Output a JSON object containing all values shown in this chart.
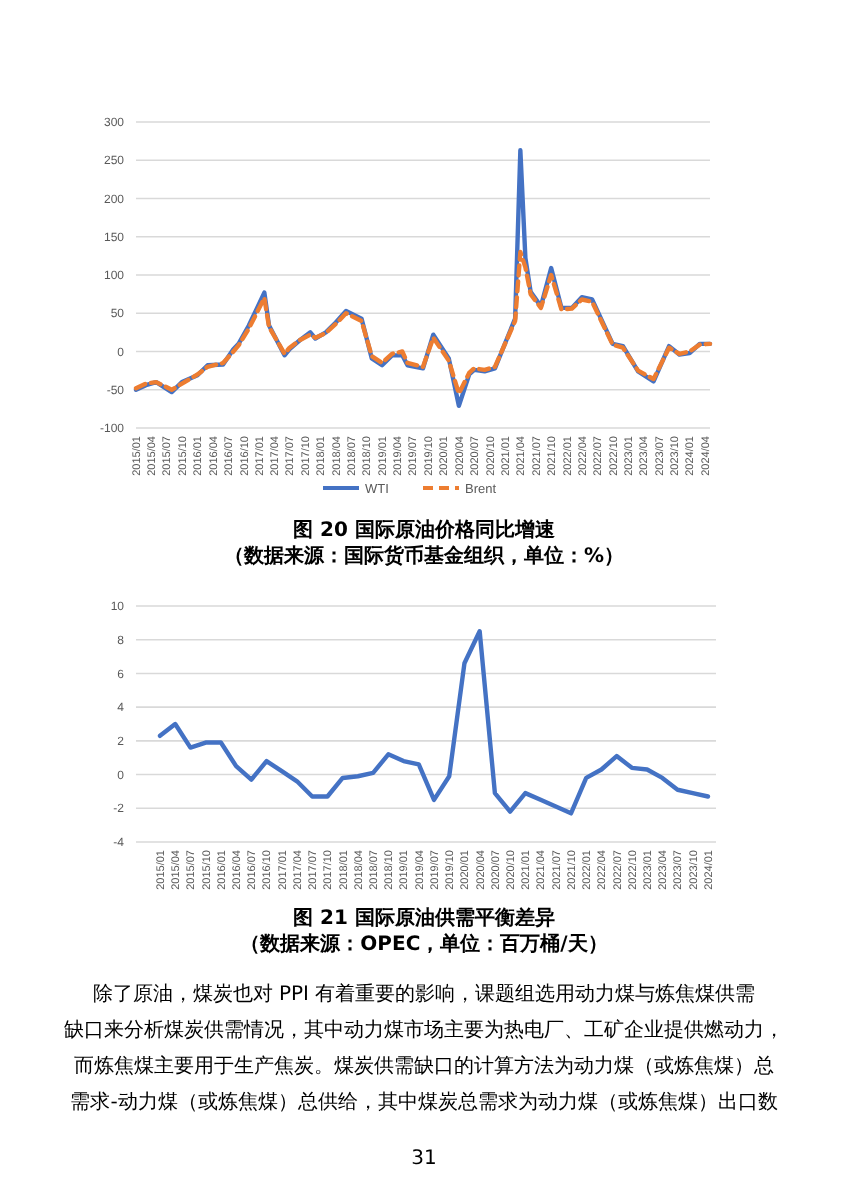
{
  "chart_data": [
    {
      "type": "line",
      "title": "图 20 国际原油价格同比增速",
      "subtitle": "（数据来源：国际货币基金组织，单位：%）",
      "ylim": [
        -100,
        300
      ],
      "yticks": [
        -100,
        -50,
        0,
        50,
        100,
        150,
        200,
        250,
        300
      ],
      "xlim": [
        "2015-01",
        "2024-05"
      ],
      "xticks": [
        {
          "value": "2015-01",
          "label": "2015/01"
        },
        {
          "value": "2015-04",
          "label": "2015/04"
        },
        {
          "value": "2015-07",
          "label": "2015/07"
        },
        {
          "value": "2015-10",
          "label": "2015/10"
        },
        {
          "value": "2016-01",
          "label": "2016/01"
        },
        {
          "value": "2016-04",
          "label": "2016/04"
        },
        {
          "value": "2016-07",
          "label": "2016/07"
        },
        {
          "value": "2016-10",
          "label": "2016/10"
        },
        {
          "value": "2017-01",
          "label": "2017/01"
        },
        {
          "value": "2017-04",
          "label": "2017/04"
        },
        {
          "value": "2017-07",
          "label": "2017/07"
        },
        {
          "value": "2017-10",
          "label": "2017/10"
        },
        {
          "value": "2018-01",
          "label": "2018/01"
        },
        {
          "value": "2018-04",
          "label": "2018/04"
        },
        {
          "value": "2018-07",
          "label": "2018/07"
        },
        {
          "value": "2018-10",
          "label": "2018/10"
        },
        {
          "value": "2019-01",
          "label": "2019/01"
        },
        {
          "value": "2019-04",
          "label": "2019/04"
        },
        {
          "value": "2019-07",
          "label": "2019/07"
        },
        {
          "value": "2019-10",
          "label": "2019/10"
        },
        {
          "value": "2020-01",
          "label": "2020/01"
        },
        {
          "value": "2020-04",
          "label": "2020/04"
        },
        {
          "value": "2020-07",
          "label": "2020/07"
        },
        {
          "value": "2020-10",
          "label": "2020/10"
        },
        {
          "value": "2021-01",
          "label": "2021/01"
        },
        {
          "value": "2021-04",
          "label": "2021/04"
        },
        {
          "value": "2021-07",
          "label": "2021/07"
        },
        {
          "value": "2021-10",
          "label": "2021/10"
        },
        {
          "value": "2022-01",
          "label": "2022/01"
        },
        {
          "value": "2022-04",
          "label": "2022/04"
        },
        {
          "value": "2022-07",
          "label": "2022/07"
        },
        {
          "value": "2022-10",
          "label": "2022/10"
        },
        {
          "value": "2023-01",
          "label": "2023/01"
        },
        {
          "value": "2023-04",
          "label": "2023/04"
        },
        {
          "value": "2023-07",
          "label": "2023/07"
        },
        {
          "value": "2023-10",
          "label": "2023/10"
        },
        {
          "value": "2024-01",
          "label": "2024/01"
        },
        {
          "value": "2024-04",
          "label": "2024/04"
        }
      ],
      "x": [
        "2015-01",
        "2015-03",
        "2015-05",
        "2015-08",
        "2015-10",
        "2016-01",
        "2016-03",
        "2016-06",
        "2016-08",
        "2016-09",
        "2016-11",
        "2017-02",
        "2017-03",
        "2017-06",
        "2017-07",
        "2017-09",
        "2017-11",
        "2017-12",
        "2018-02",
        "2018-04",
        "2018-06",
        "2018-09",
        "2018-11",
        "2019-01",
        "2019-03",
        "2019-05",
        "2019-06",
        "2019-09",
        "2019-11",
        "2020-02",
        "2020-04",
        "2020-06",
        "2020-07",
        "2020-09",
        "2020-11",
        "2021-03",
        "2021-04",
        "2021-05",
        "2021-06",
        "2021-08",
        "2021-10",
        "2021-12",
        "2022-02",
        "2022-04",
        "2022-06",
        "2022-08",
        "2022-10",
        "2022-12",
        "2023-03",
        "2023-06",
        "2023-09",
        "2023-11",
        "2024-01",
        "2024-03",
        "2024-05"
      ],
      "grid": "y",
      "legend": "bottom",
      "series": [
        {
          "name": "WTI",
          "color": "#4472c4",
          "values": [
            -50,
            -44,
            -40,
            -53,
            -40,
            -31,
            -18,
            -17,
            3,
            10,
            34,
            77,
            34,
            -5,
            3,
            15,
            25,
            17,
            25,
            38,
            53,
            43,
            -9,
            -18,
            -5,
            -5,
            -18,
            -22,
            22,
            -9,
            -71,
            -30,
            -24,
            -26,
            -22,
            43,
            263,
            122,
            78,
            59,
            109,
            57,
            57,
            71,
            68,
            39,
            10,
            7,
            -26,
            -39,
            7,
            -4,
            -2,
            10,
            10
          ]
        },
        {
          "name": "Brent",
          "color": "#ed7d31",
          "line_style": "dashed",
          "values": [
            -48,
            -42,
            -40,
            -50,
            -42,
            -30,
            -20,
            -15,
            0,
            8,
            30,
            70,
            32,
            -3,
            5,
            15,
            22,
            18,
            24,
            36,
            50,
            40,
            -6,
            -15,
            -3,
            0,
            -15,
            -20,
            18,
            -12,
            -55,
            -28,
            -22,
            -24,
            -20,
            40,
            130,
            110,
            75,
            57,
            100,
            55,
            56,
            68,
            65,
            37,
            9,
            5,
            -25,
            -36,
            5,
            -3,
            0,
            9,
            10
          ]
        }
      ]
    },
    {
      "type": "line",
      "title": "图 21 国际原油供需平衡差异",
      "subtitle": "（数据来源：OPEC，单位：百万桶/天）",
      "ylim": [
        -4,
        10
      ],
      "yticks": [
        -4,
        -2,
        0,
        2,
        4,
        6,
        8,
        10
      ],
      "grid": "y",
      "categories": [
        "2015/01",
        "2015/04",
        "2015/07",
        "2015/10",
        "2016/01",
        "2016/04",
        "2016/07",
        "2016/10",
        "2017/01",
        "2017/04",
        "2017/07",
        "2017/10",
        "2018/01",
        "2018/04",
        "2018/07",
        "2018/10",
        "2019/01",
        "2019/04",
        "2019/07",
        "2019/10",
        "2020/01",
        "2020/04",
        "2020/07",
        "2020/10",
        "2021/01",
        "2021/04",
        "2021/07",
        "2021/10",
        "2022/01",
        "2022/04",
        "2022/07",
        "2022/10",
        "2023/01",
        "2023/04",
        "2023/07",
        "2023/10",
        "2024/01"
      ],
      "series": [
        {
          "color": "#4472c4",
          "values": [
            2.3,
            3.0,
            1.6,
            1.9,
            1.9,
            0.5,
            -0.3,
            0.8,
            0.2,
            -0.4,
            -1.3,
            -1.3,
            -0.2,
            -0.1,
            0.1,
            1.2,
            0.8,
            0.6,
            -1.5,
            -0.1,
            6.6,
            8.5,
            -1.1,
            -2.2,
            -1.1,
            -1.5,
            -1.9,
            -2.3,
            -0.2,
            0.3,
            1.1,
            0.4,
            0.3,
            -0.2,
            -0.9,
            -1.1,
            -1.3
          ]
        }
      ],
      "annotations": [
        "除了原油，煤炭也对 PPI 有着重要的影响，课题组选用动力煤与炼焦煤供需",
        "缺口来分析煤炭供需情况，其中动力煤市场主要为热电厂、工矿企业提供燃动力，",
        "而炼焦煤主要用于生产焦炭。煤炭供需缺口的计算方法为动力煤（或炼焦煤）总",
        "需求-动力煤（或炼焦煤）总供给，其中煤炭总需求为动力煤（或炼焦煤）出口数",
        "31"
      ]
    }
  ]
}
